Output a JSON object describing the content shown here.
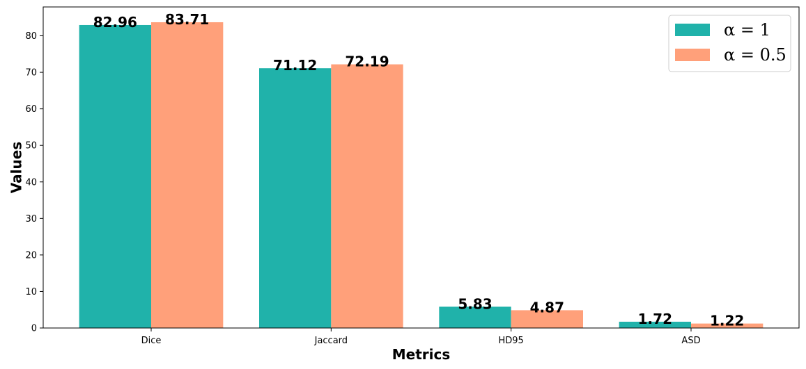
{
  "chart_data": {
    "type": "bar",
    "title": "",
    "xlabel": "Metrics",
    "ylabel": "Values",
    "categories": [
      "Dice",
      "Jaccard",
      "HD95",
      "ASD"
    ],
    "series": [
      {
        "name": "α = 1",
        "values": [
          82.96,
          71.12,
          5.83,
          1.72
        ],
        "color": "#20b2aa"
      },
      {
        "name": "α = 0.5",
        "values": [
          83.71,
          72.19,
          4.87,
          1.22
        ],
        "color": "#ffa07a"
      }
    ],
    "value_labels": [
      [
        "82.96",
        "71.12",
        "5.83",
        "1.72"
      ],
      [
        "83.71",
        "72.19",
        "4.87",
        "1.22"
      ]
    ],
    "ylim": [
      0,
      87.9
    ],
    "yticks": [
      0,
      10,
      20,
      30,
      40,
      50,
      60,
      70,
      80
    ],
    "ytick_labels": [
      "0",
      "10",
      "20",
      "30",
      "40",
      "50",
      "60",
      "70",
      "80"
    ],
    "grid": false,
    "legend_position": "top-right"
  }
}
